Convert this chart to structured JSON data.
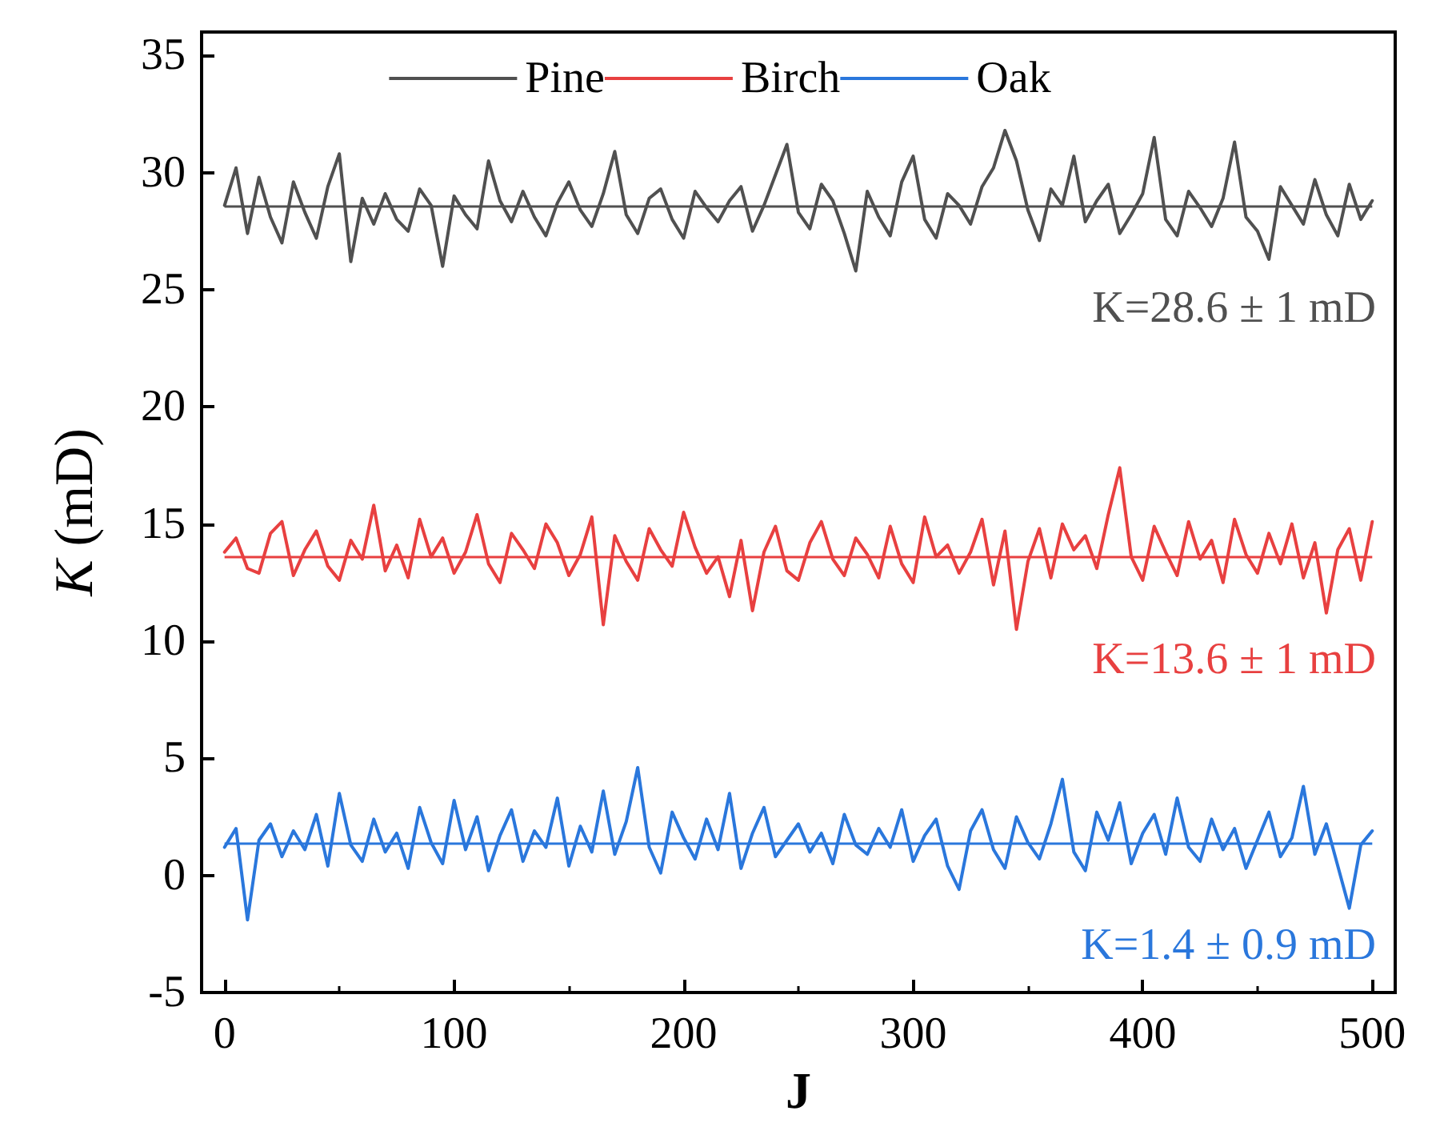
{
  "chart_data": {
    "type": "line",
    "xlabel": "J",
    "ylabel": "K (mD)",
    "x": [
      0,
      5,
      10,
      15,
      20,
      25,
      30,
      35,
      40,
      45,
      50,
      55,
      60,
      65,
      70,
      75,
      80,
      85,
      90,
      95,
      100,
      105,
      110,
      115,
      120,
      125,
      130,
      135,
      140,
      145,
      150,
      155,
      160,
      165,
      170,
      175,
      180,
      185,
      190,
      195,
      200,
      205,
      210,
      215,
      220,
      225,
      230,
      235,
      240,
      245,
      250,
      255,
      260,
      265,
      270,
      275,
      280,
      285,
      290,
      295,
      300,
      305,
      310,
      315,
      320,
      325,
      330,
      335,
      340,
      345,
      350,
      355,
      360,
      365,
      370,
      375,
      380,
      385,
      390,
      395,
      400,
      405,
      410,
      415,
      420,
      425,
      430,
      435,
      440,
      445,
      450,
      455,
      460,
      465,
      470,
      475,
      480,
      485,
      490,
      495,
      500
    ],
    "series": [
      {
        "name": "Pine",
        "color": "#505050",
        "values": [
          28.6,
          30.2,
          27.4,
          29.8,
          28.1,
          27.0,
          29.6,
          28.3,
          27.2,
          29.4,
          30.8,
          26.2,
          28.9,
          27.8,
          29.1,
          28.0,
          27.5,
          29.3,
          28.6,
          26.0,
          29.0,
          28.2,
          27.6,
          30.5,
          28.8,
          27.9,
          29.2,
          28.1,
          27.3,
          28.7,
          29.6,
          28.4,
          27.7,
          29.1,
          30.9,
          28.2,
          27.4,
          28.9,
          29.3,
          28.0,
          27.2,
          29.2,
          28.5,
          27.9,
          28.8,
          29.4,
          27.5,
          28.6,
          29.9,
          31.2,
          28.3,
          27.6,
          29.5,
          28.8,
          27.4,
          25.8,
          29.2,
          28.1,
          27.3,
          29.6,
          30.7,
          28.0,
          27.2,
          29.1,
          28.6,
          27.8,
          29.4,
          30.2,
          31.8,
          30.5,
          28.4,
          27.1,
          29.3,
          28.6,
          30.7,
          27.9,
          28.8,
          29.5,
          27.4,
          28.2,
          29.1,
          31.5,
          28.0,
          27.3,
          29.2,
          28.5,
          27.7,
          28.9,
          31.3,
          28.1,
          27.5,
          26.3,
          29.4,
          28.6,
          27.8,
          29.7,
          28.2,
          27.3,
          29.5,
          28.0,
          28.8
        ]
      },
      {
        "name": "Birch",
        "color": "#e84040",
        "values": [
          13.8,
          14.4,
          13.1,
          12.9,
          14.6,
          15.1,
          12.8,
          13.9,
          14.7,
          13.2,
          12.6,
          14.3,
          13.5,
          15.8,
          13.0,
          14.1,
          12.7,
          15.2,
          13.6,
          14.4,
          12.9,
          13.8,
          15.4,
          13.3,
          12.5,
          14.6,
          13.9,
          13.1,
          15.0,
          14.2,
          12.8,
          13.7,
          15.3,
          10.7,
          14.5,
          13.4,
          12.6,
          14.8,
          13.9,
          13.2,
          15.5,
          14.0,
          12.9,
          13.6,
          11.9,
          14.3,
          11.3,
          13.8,
          14.9,
          13.0,
          12.6,
          14.2,
          15.1,
          13.5,
          12.8,
          14.4,
          13.7,
          12.7,
          14.9,
          13.3,
          12.5,
          15.3,
          13.6,
          14.1,
          12.9,
          13.8,
          15.2,
          12.4,
          14.7,
          10.5,
          13.4,
          14.8,
          12.7,
          15.0,
          13.9,
          14.5,
          13.1,
          15.4,
          17.4,
          13.6,
          12.6,
          14.9,
          13.8,
          12.8,
          15.1,
          13.5,
          14.3,
          12.5,
          15.2,
          13.7,
          12.9,
          14.6,
          13.3,
          15.0,
          12.7,
          14.2,
          11.2,
          13.9,
          14.8,
          12.6,
          15.1
        ]
      },
      {
        "name": "Oak",
        "color": "#2a77dc",
        "values": [
          1.2,
          2.0,
          -1.9,
          1.5,
          2.2,
          0.8,
          1.9,
          1.1,
          2.6,
          0.4,
          3.5,
          1.3,
          0.6,
          2.4,
          1.0,
          1.8,
          0.3,
          2.9,
          1.4,
          0.5,
          3.2,
          1.1,
          2.5,
          0.2,
          1.7,
          2.8,
          0.6,
          1.9,
          1.2,
          3.3,
          0.4,
          2.1,
          1.0,
          3.6,
          0.9,
          2.3,
          4.6,
          1.2,
          0.1,
          2.7,
          1.6,
          0.7,
          2.4,
          1.1,
          3.5,
          0.3,
          1.8,
          2.9,
          0.8,
          1.5,
          2.2,
          1.0,
          1.8,
          0.5,
          2.6,
          1.3,
          0.9,
          2.0,
          1.2,
          2.8,
          0.6,
          1.7,
          2.4,
          0.4,
          -0.6,
          1.9,
          2.8,
          1.1,
          0.3,
          2.5,
          1.4,
          0.7,
          2.2,
          4.1,
          1.0,
          0.2,
          2.7,
          1.5,
          3.1,
          0.5,
          1.8,
          2.6,
          0.9,
          3.3,
          1.2,
          0.6,
          2.4,
          1.1,
          2.0,
          0.3,
          1.5,
          2.7,
          0.8,
          1.6,
          3.8,
          0.9,
          2.2,
          0.4,
          -1.4,
          1.3,
          1.9
        ]
      }
    ],
    "ref_lines": [
      {
        "axis": "y",
        "value": 28.6,
        "color": "#505050"
      },
      {
        "axis": "y",
        "value": 13.6,
        "color": "#e84040"
      },
      {
        "axis": "y",
        "value": 1.4,
        "color": "#2a77dc"
      }
    ],
    "annotations": [
      "K=28.6 ± 1 mD",
      "K=13.6 ± 1 mD",
      "K=1.4 ± 0.9 mD"
    ],
    "xlim": [
      -10,
      510
    ],
    "xticks": [
      0,
      100,
      200,
      300,
      400,
      500
    ],
    "ylim": [
      -5,
      36
    ],
    "yticks": [
      -5,
      0,
      5,
      10,
      15,
      20,
      25,
      30,
      35
    ],
    "legend": "top",
    "marker": "none",
    "line_style": "solid"
  }
}
